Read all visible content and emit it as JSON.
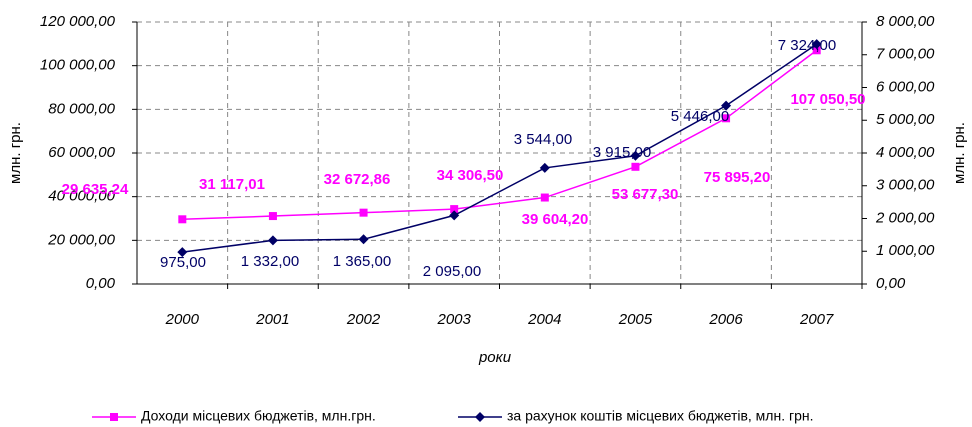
{
  "chart_data": {
    "type": "line",
    "xlabel": "роки",
    "ylabel": "млн. грн.",
    "y2label": "млн. грн.",
    "categories": [
      "2000",
      "2001",
      "2002",
      "2003",
      "2004",
      "2005",
      "2006",
      "2007"
    ],
    "series": [
      {
        "name": "Доходи місцевих бюджетів, млн.грн.",
        "color": "#ff00ff",
        "marker": "square",
        "values": [
          29635.24,
          31117.01,
          32672.86,
          34306.5,
          39604.2,
          53677.3,
          75895.2,
          107050.5
        ],
        "value_labels": [
          "29 635,24",
          "31 117,01",
          "32 672,86",
          "34 306,50",
          "39 604,20",
          "53 677,30",
          "75 895,20",
          "107 050,50"
        ]
      },
      {
        "name": "за рахунок коштів місцевих бюджетів, млн. грн.",
        "color": "#000066",
        "marker": "diamond",
        "axis": "y2",
        "values": [
          975,
          1332,
          1365,
          2095,
          3544,
          3915,
          5446,
          7324
        ],
        "value_labels": [
          "975,00",
          "1 332,00",
          "1 365,00",
          "2 095,00",
          "3 544,00",
          "3 915,00",
          "5 446,00",
          "7 324,00"
        ]
      }
    ],
    "ylim": [
      0,
      120000
    ],
    "yticks": [
      {
        "value": 0,
        "label": "0,00"
      },
      {
        "value": 20000,
        "label": "20 000,00"
      },
      {
        "value": 40000,
        "label": "40 000,00"
      },
      {
        "value": 60000,
        "label": "60 000,00"
      },
      {
        "value": 80000,
        "label": "80 000,00"
      },
      {
        "value": 100000,
        "label": "100 000,00"
      },
      {
        "value": 120000,
        "label": "120 000,00"
      }
    ],
    "y2lim": [
      0,
      8000
    ],
    "y2ticks": [
      {
        "value": 0,
        "label": "0,00"
      },
      {
        "value": 1000,
        "label": "1 000,00"
      },
      {
        "value": 2000,
        "label": "2 000,00"
      },
      {
        "value": 3000,
        "label": "3 000,00"
      },
      {
        "value": 4000,
        "label": "4 000,00"
      },
      {
        "value": 5000,
        "label": "5 000,00"
      },
      {
        "value": 6000,
        "label": "6 000,00"
      },
      {
        "value": 7000,
        "label": "7 000,00"
      },
      {
        "value": 8000,
        "label": "8 000,00"
      }
    ],
    "grid": true,
    "legend": "bottom"
  }
}
